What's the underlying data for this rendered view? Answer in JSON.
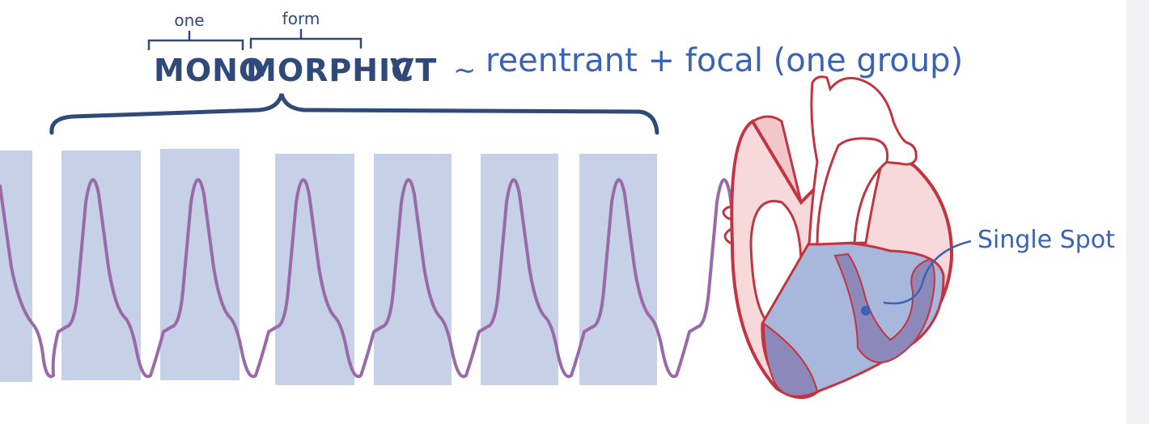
{
  "annotations": {
    "prefix_meaning": "one",
    "root_meaning": "form"
  },
  "title": {
    "prefix": "MONO",
    "root": "MORPHIC",
    "suffix": "VT",
    "tilde": "~",
    "mechanism": "reentrant + focal (one group)"
  },
  "heart_label": "Single Spot",
  "colors": {
    "title_navy": "#2f4a78",
    "handwriting_blue": "#3a63b5",
    "complex_box": "#c6d0e6",
    "trace_purple": "#9a6aa8",
    "heart_outline": "#c2343f",
    "ventricle_fill": "#a8b8dc",
    "septum_fill": "#8d88ba"
  }
}
